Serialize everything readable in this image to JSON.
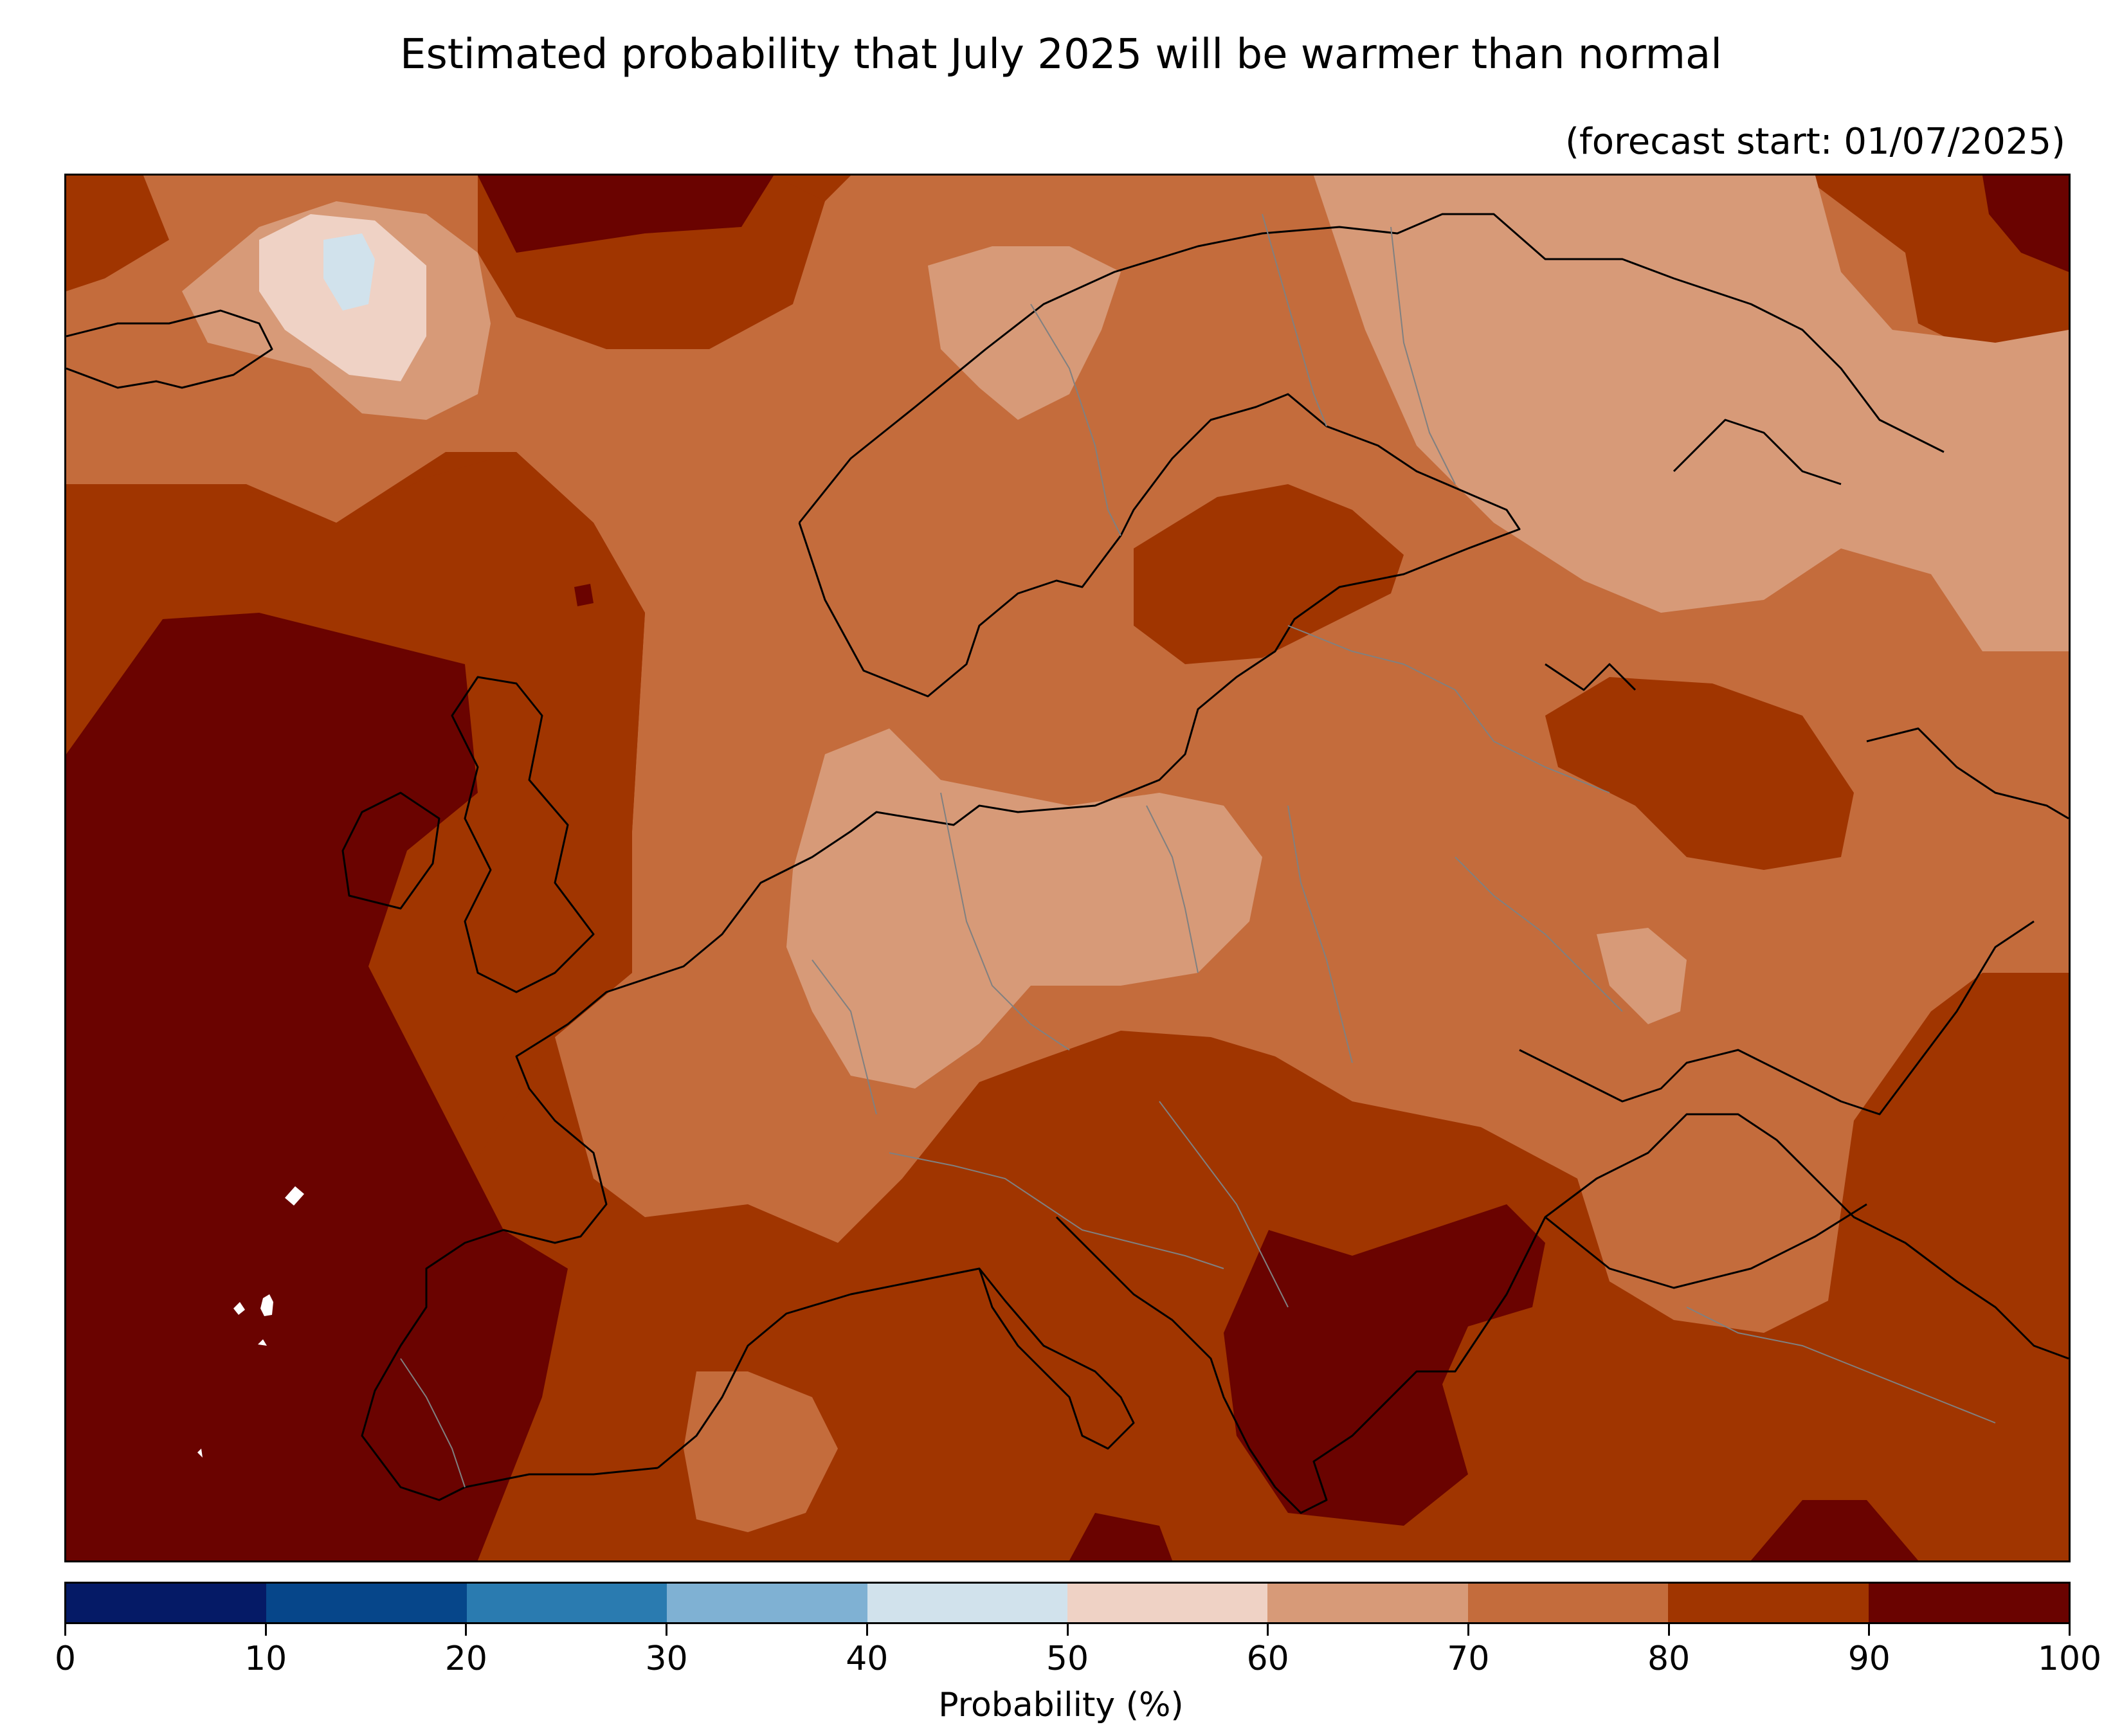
{
  "title": "Estimated probability that July 2025 will be warmer than normal",
  "subtitle": "(forecast start: 01/07/2025)",
  "colorbar": {
    "label": "Probability (%)",
    "ticks": [
      "0",
      "10",
      "20",
      "30",
      "40",
      "50",
      "60",
      "70",
      "80",
      "90",
      "100"
    ],
    "bins": [
      {
        "range": [
          0,
          10
        ],
        "color": "#051a66"
      },
      {
        "range": [
          10,
          20
        ],
        "color": "#06468a"
      },
      {
        "range": [
          20,
          30
        ],
        "color": "#2a7bb0"
      },
      {
        "range": [
          30,
          40
        ],
        "color": "#7fb1d3"
      },
      {
        "range": [
          40,
          50
        ],
        "color": "#d1e2ec"
      },
      {
        "range": [
          50,
          60
        ],
        "color": "#efd2c5"
      },
      {
        "range": [
          60,
          70
        ],
        "color": "#d79a78"
      },
      {
        "range": [
          70,
          80
        ],
        "color": "#c46c3c"
      },
      {
        "range": [
          80,
          90
        ],
        "color": "#a03500"
      },
      {
        "range": [
          90,
          100
        ],
        "color": "#6a0300"
      }
    ]
  },
  "map": {
    "region": "Europe",
    "variable": "probability of above-normal temperature",
    "coastline_color": "#000000",
    "border_color": "#808080",
    "missing_color": "#ffffff"
  }
}
